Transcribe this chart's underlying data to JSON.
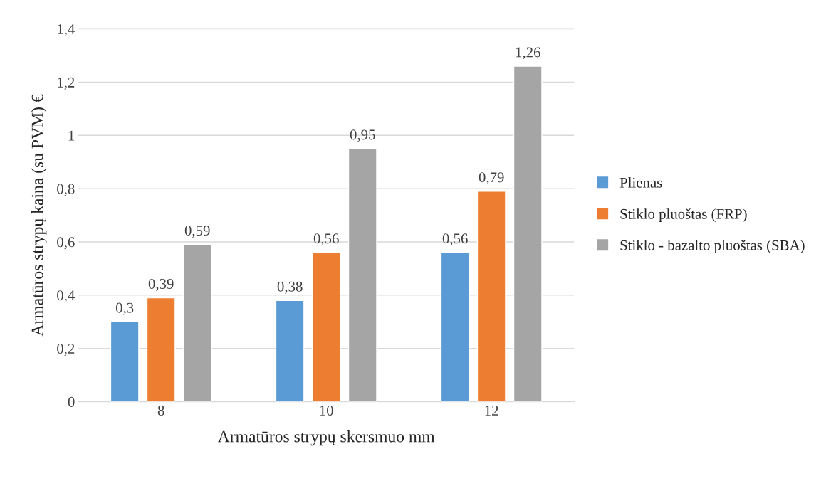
{
  "chart_data": {
    "type": "bar",
    "xlabel": "Armatūros strypų skersmuo mm",
    "ylabel": "Armatūros strypų kaina (su PVM) €",
    "categories": [
      "8",
      "10",
      "12"
    ],
    "series": [
      {
        "name": "Plienas",
        "color": "#5b9bd5",
        "values": [
          0.3,
          0.38,
          0.56
        ],
        "value_labels": [
          "0,3",
          "0,38",
          "0,56"
        ]
      },
      {
        "name": "Stiklo pluoštas (FRP)",
        "color": "#ed7d31",
        "values": [
          0.39,
          0.56,
          0.79
        ],
        "value_labels": [
          "0,39",
          "0,56",
          "0,79"
        ]
      },
      {
        "name": "Stiklo - bazalto pluoštas (SBA)",
        "color": "#a5a5a5",
        "values": [
          0.59,
          0.95,
          1.26
        ],
        "value_labels": [
          "0,59",
          "0,95",
          "1,26"
        ]
      }
    ],
    "ylim": [
      0,
      1.4
    ],
    "yticks": [
      0,
      {
        "value": 0.2,
        "label": "0,2"
      },
      {
        "value": 0.4,
        "label": "0,4"
      },
      {
        "value": 0.6,
        "label": "0,6"
      },
      {
        "value": 0.8,
        "label": "0,8"
      },
      1,
      {
        "value": 1.2,
        "label": "1,2"
      },
      {
        "value": 1.4,
        "label": "1,4"
      }
    ],
    "grid": "y",
    "legend": "right"
  }
}
